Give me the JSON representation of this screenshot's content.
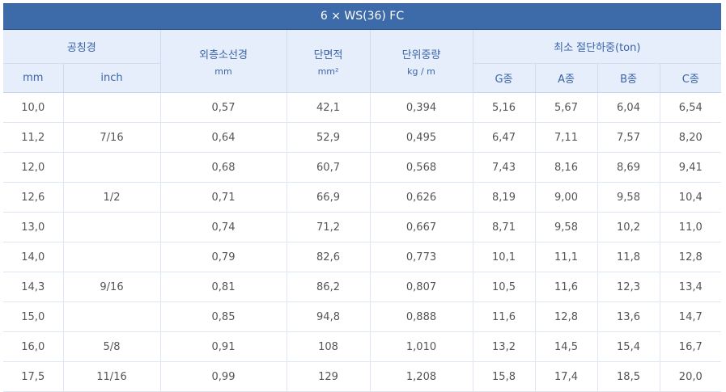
{
  "title": "6 × WS(36) FC",
  "headers": {
    "nominal": "공칭경",
    "nominal_mm": "mm",
    "nominal_inch": "inch",
    "outer_wire": "외층소선경",
    "outer_wire_unit": "mm",
    "area": "단면적",
    "area_unit": "mm²",
    "unit_weight": "단위중량",
    "unit_weight_unit": "kg / m",
    "breaking_load": "최소 절단하중(ton)",
    "grade_g": "G종",
    "grade_a": "A종",
    "grade_b": "B종",
    "grade_c": "C종"
  },
  "rows": [
    {
      "mm": "10,0",
      "inch": "",
      "wire": "0,57",
      "area": "42,1",
      "weight": "0,394",
      "g": "5,16",
      "a": "5,67",
      "b": "6,04",
      "c": "6,54"
    },
    {
      "mm": "11,2",
      "inch": "7/16",
      "wire": "0,64",
      "area": "52,9",
      "weight": "0,495",
      "g": "6,47",
      "a": "7,11",
      "b": "7,57",
      "c": "8,20"
    },
    {
      "mm": "12,0",
      "inch": "",
      "wire": "0,68",
      "area": "60,7",
      "weight": "0,568",
      "g": "7,43",
      "a": "8,16",
      "b": "8,69",
      "c": "9,41"
    },
    {
      "mm": "12,6",
      "inch": "1/2",
      "wire": "0,71",
      "area": "66,9",
      "weight": "0,626",
      "g": "8,19",
      "a": "9,00",
      "b": "9,58",
      "c": "10,4"
    },
    {
      "mm": "13,0",
      "inch": "",
      "wire": "0,74",
      "area": "71,2",
      "weight": "0,667",
      "g": "8,71",
      "a": "9,58",
      "b": "10,2",
      "c": "11,0"
    },
    {
      "mm": "14,0",
      "inch": "",
      "wire": "0,79",
      "area": "82,6",
      "weight": "0,773",
      "g": "10,1",
      "a": "11,1",
      "b": "11,8",
      "c": "12,8"
    },
    {
      "mm": "14,3",
      "inch": "9/16",
      "wire": "0,81",
      "area": "86,2",
      "weight": "0,807",
      "g": "10,5",
      "a": "11,6",
      "b": "12,3",
      "c": "13,4"
    },
    {
      "mm": "15,0",
      "inch": "",
      "wire": "0,85",
      "area": "94,8",
      "weight": "0,888",
      "g": "11,6",
      "a": "12,8",
      "b": "13,6",
      "c": "14,7"
    },
    {
      "mm": "16,0",
      "inch": "5/8",
      "wire": "0,91",
      "area": "108",
      "weight": "1,010",
      "g": "13,2",
      "a": "14,5",
      "b": "15,4",
      "c": "16,7"
    },
    {
      "mm": "17,5",
      "inch": "11/16",
      "wire": "0,99",
      "area": "129",
      "weight": "1,208",
      "g": "15,8",
      "a": "17,4",
      "b": "18,5",
      "c": "20,0"
    }
  ]
}
